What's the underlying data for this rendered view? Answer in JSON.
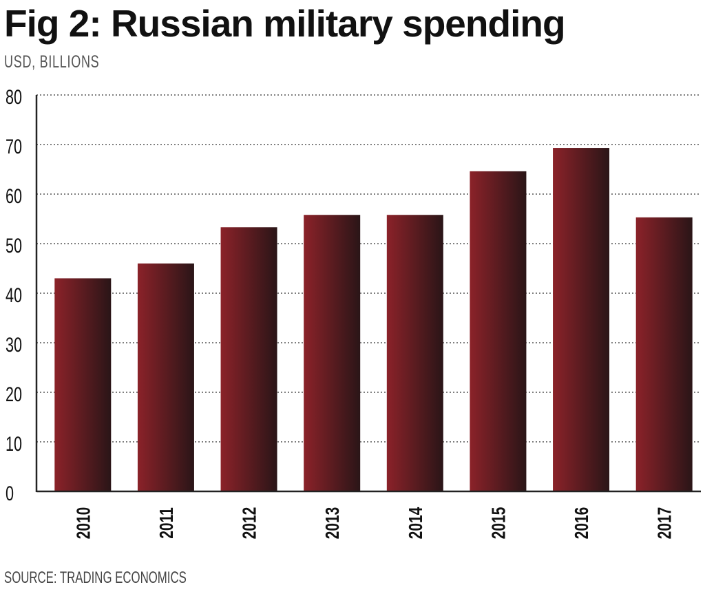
{
  "chart_data": {
    "type": "bar",
    "title": "Fig 2: Russian military spending",
    "ylabel": "USD, BILLIONS",
    "source": "SOURCE: TRADING ECONOMICS",
    "categories": [
      "2010",
      "2011",
      "2012",
      "2013",
      "2014",
      "2015",
      "2016",
      "2017"
    ],
    "values": [
      43.0,
      46.0,
      53.3,
      55.8,
      55.8,
      64.6,
      69.3,
      55.3
    ],
    "ylim": [
      0,
      80
    ],
    "yticks": [
      0,
      10,
      20,
      30,
      40,
      50,
      60,
      70,
      80
    ],
    "grid": true,
    "grid_style": "dotted",
    "bar_color_start": "#8b2229",
    "bar_color_end": "#2a1517"
  }
}
